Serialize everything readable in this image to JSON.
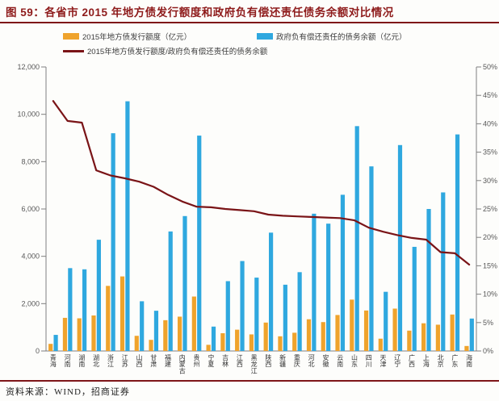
{
  "header": {
    "title": "图 59：各省市 2015 年地方债发行额度和政府负有偿还责任债务余额对比情况",
    "rule_color": "#7e1518"
  },
  "legend": {
    "items": [
      {
        "label": "2015年地方债发行额度（亿元）",
        "swatch": "bar"
      },
      {
        "label": "政府负有偿还责任的债务余额（亿元）",
        "swatch": "bar"
      },
      {
        "label": "2015年地方债发行额度/政府负有偿还责任的债务余额",
        "swatch": "line"
      }
    ]
  },
  "footer": {
    "source": "资料来源：WIND，招商证券"
  },
  "colors": {
    "accent_dark_red": "#8e1b1b",
    "bar_issuance": "#efa32c",
    "bar_balance": "#2fa8df",
    "ratio_line": "#7a1417",
    "axis": "#808080",
    "tick_label": "#595959",
    "category_label": "#333333"
  },
  "chart_data": {
    "type": "bar",
    "title": "各省市2015年地方债发行额度和政府负有偿还责任债务余额对比情况",
    "categories": [
      "青海",
      "河南",
      "湖南",
      "湖北",
      "浙江",
      "江苏",
      "山西",
      "甘肃",
      "福建",
      "内蒙古",
      "贵州",
      "宁夏",
      "吉林",
      "江西",
      "黑龙江",
      "陕西",
      "新疆",
      "重庆",
      "河北",
      "安徽",
      "云南",
      "山东",
      "四川",
      "天津",
      "辽宁",
      "广西",
      "上海",
      "北京",
      "广东",
      "海南"
    ],
    "series": [
      {
        "name": "2015年地方债发行额度（亿元）",
        "type": "bar",
        "axis": "left",
        "color": "#efa32c",
        "values": [
          300,
          1400,
          1380,
          1500,
          2750,
          3150,
          640,
          470,
          1300,
          1450,
          2300,
          260,
          750,
          900,
          700,
          1200,
          620,
          770,
          1340,
          1220,
          1520,
          2170,
          1710,
          520,
          1790,
          860,
          1170,
          1110,
          1540,
          210
        ]
      },
      {
        "name": "政府负有偿还责任的债务余额（亿元）",
        "type": "bar",
        "axis": "left",
        "color": "#2fa8df",
        "values": [
          680,
          3500,
          3450,
          4700,
          9200,
          10550,
          2100,
          1700,
          5050,
          5700,
          9100,
          1030,
          2950,
          3800,
          3100,
          5000,
          2800,
          3330,
          5800,
          5380,
          6600,
          9500,
          7800,
          2500,
          8700,
          4400,
          6000,
          6700,
          9150,
          1370
        ]
      },
      {
        "name": "2015年地方债发行额度/政府负有偿还责任的债务余额",
        "type": "line",
        "axis": "right",
        "color": "#7a1417",
        "values": [
          44.0,
          40.5,
          40.2,
          31.8,
          30.9,
          30.4,
          29.8,
          28.9,
          27.5,
          26.3,
          25.4,
          25.3,
          25.0,
          24.8,
          24.6,
          24.0,
          23.8,
          23.7,
          23.6,
          23.5,
          23.4,
          23.0,
          21.7,
          21.0,
          20.4,
          19.9,
          19.6,
          17.4,
          17.2,
          15.2
        ]
      }
    ],
    "axes": {
      "left": {
        "min": 0,
        "max": 12000,
        "step": 2000,
        "format": "thousands"
      },
      "right": {
        "min": 0,
        "max": 50,
        "step": 5,
        "format": "percent"
      }
    },
    "grid": false,
    "legend_position": "top"
  }
}
